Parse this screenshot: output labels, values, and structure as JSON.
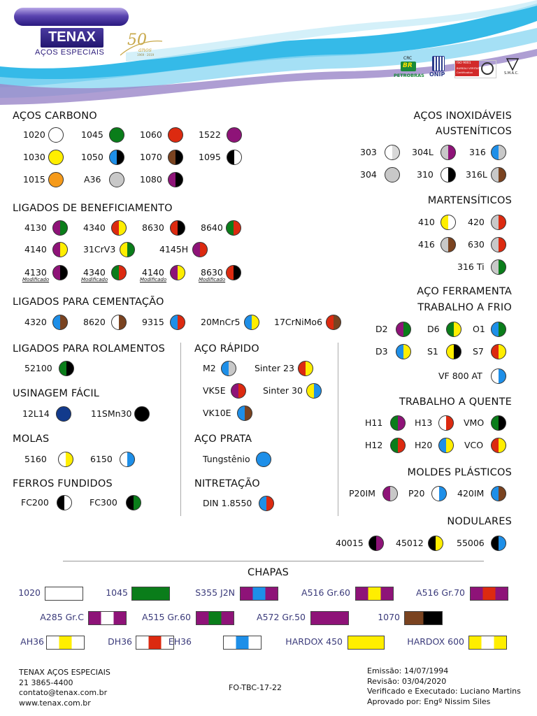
{
  "header": {
    "brand": "TENAX",
    "subtitle": "AÇOS ESPECIAIS",
    "anniv_num": "50",
    "anniv_word": "anos",
    "anniv_years": "1969 · 2019",
    "cert_logos": [
      {
        "name": "petrobras-crc-logo",
        "top": "CRC",
        "mid": "BR",
        "bottom": "PETROBRAS"
      },
      {
        "name": "onip-logo",
        "bottom": "ONIP"
      },
      {
        "name": "iso-9001-logo",
        "top": "ISO 9001",
        "mid": "BUREAU VERITAS",
        "bottom": "Certification"
      },
      {
        "name": "smac-logo",
        "bottom": "S.M.A.C."
      }
    ]
  },
  "colors": {
    "white": "#ffffff",
    "green": "#0a7d1a",
    "red": "#dc2a10",
    "purple": "#8e1378",
    "yellow": "#ffee00",
    "blue": "#1e8fe8",
    "black": "#000000",
    "brown": "#7a4320",
    "orange": "#f59a1a",
    "gray": "#c8c8c8",
    "navy": "#123a8c",
    "lightgray": "#d8d8d8",
    "lightblue": "#55aaee"
  },
  "sections": {
    "carbono": {
      "title": "AÇOS CARBONO",
      "items": [
        {
          "label": "1020",
          "left": "white",
          "right": "white"
        },
        {
          "label": "1045",
          "left": "green",
          "right": "green"
        },
        {
          "label": "1060",
          "left": "red",
          "right": "red"
        },
        {
          "label": "1522",
          "left": "purple",
          "right": "purple"
        },
        {
          "label": "1030",
          "left": "yellow",
          "right": "yellow"
        },
        {
          "label": "1050",
          "left": "blue",
          "right": "black"
        },
        {
          "label": "1070",
          "left": "brown",
          "right": "black"
        },
        {
          "label": "1095",
          "left": "black",
          "right": "white"
        },
        {
          "label": "1015",
          "left": "orange",
          "right": "orange"
        },
        {
          "label": "A36",
          "left": "gray",
          "right": "gray"
        },
        {
          "label": "1080",
          "left": "purple",
          "right": "black"
        }
      ]
    },
    "beneficiamento": {
      "title": "LIGADOS DE BENEFICIAMENTO",
      "items": [
        {
          "label": "4130",
          "left": "purple",
          "right": "green"
        },
        {
          "label": "4340",
          "left": "red",
          "right": "yellow"
        },
        {
          "label": "8630",
          "left": "red",
          "right": "black"
        },
        {
          "label": "8640",
          "left": "green",
          "right": "red"
        },
        {
          "label": "4140",
          "left": "purple",
          "right": "yellow"
        },
        {
          "label": "31CrV3",
          "left": "yellow",
          "right": "green"
        },
        {
          "label": "4145H",
          "left": "purple",
          "right": "red"
        },
        {
          "label": "4130",
          "left": "purple",
          "right": "black",
          "mod": "Modificado"
        },
        {
          "label": "4340",
          "left": "green",
          "right": "red",
          "mod": "Modificado"
        },
        {
          "label": "4140",
          "left": "purple",
          "right": "yellow",
          "mod": "Modificado"
        },
        {
          "label": "8630",
          "left": "red",
          "right": "black",
          "mod": "Modificado"
        }
      ]
    },
    "cementacao": {
      "title": "LIGADOS PARA CEMENTAÇÃO",
      "items": [
        {
          "label": "4320",
          "left": "blue",
          "right": "brown"
        },
        {
          "label": "8620",
          "left": "white",
          "right": "brown"
        },
        {
          "label": "9315",
          "left": "blue",
          "right": "red"
        },
        {
          "label": "20MnCr5",
          "left": "blue",
          "right": "yellow"
        },
        {
          "label": "17CrNiMo6",
          "left": "red",
          "right": "brown"
        }
      ]
    },
    "rolamentos": {
      "title": "LIGADOS PARA ROLAMENTOS",
      "items": [
        {
          "label": "52100",
          "left": "green",
          "right": "black"
        }
      ]
    },
    "usinagem": {
      "title": "USINAGEM FÁCIL",
      "items": [
        {
          "label": "12L14",
          "left": "navy",
          "right": "navy"
        },
        {
          "label": "11SMn30",
          "left": "black",
          "right": "black"
        }
      ]
    },
    "molas": {
      "title": "MOLAS",
      "items": [
        {
          "label": "5160",
          "left": "white",
          "right": "yellow"
        },
        {
          "label": "6150",
          "left": "white",
          "right": "blue"
        }
      ]
    },
    "ferros": {
      "title": "FERROS FUNDIDOS",
      "items": [
        {
          "label": "FC200",
          "left": "black",
          "right": "white"
        },
        {
          "label": "FC300",
          "left": "black",
          "right": "green"
        }
      ]
    },
    "rapido": {
      "title": "AÇO RÁPIDO",
      "items": [
        {
          "label": "M2",
          "left": "blue",
          "right": "gray"
        },
        {
          "label": "Sinter 23",
          "left": "red",
          "right": "yellow"
        },
        {
          "label": "VK5E",
          "left": "purple",
          "right": "red"
        },
        {
          "label": "Sinter 30",
          "left": "yellow",
          "right": "blue"
        },
        {
          "label": "VK10E",
          "left": "blue",
          "right": "brown"
        }
      ]
    },
    "prata": {
      "title": "AÇO PRATA",
      "items": [
        {
          "label": "Tungstênio",
          "left": "blue",
          "right": "blue"
        }
      ]
    },
    "nitretacao": {
      "title": "NITRETAÇÃO",
      "items": [
        {
          "label": "DIN 1.8550",
          "left": "blue",
          "right": "red"
        }
      ]
    },
    "inox": {
      "title1": "AÇOS INOXIDÁVEIS",
      "title2": "AUSTENÍTICOS",
      "items": [
        {
          "label": "303",
          "left": "white",
          "right": "lightgray"
        },
        {
          "label": "304L",
          "left": "gray",
          "right": "purple"
        },
        {
          "label": "316",
          "left": "blue",
          "right": "gray"
        },
        {
          "label": "304",
          "left": "gray",
          "right": "gray"
        },
        {
          "label": "310",
          "left": "white",
          "right": "black"
        },
        {
          "label": "316L",
          "left": "gray",
          "right": "brown"
        }
      ]
    },
    "martensiticos": {
      "title": "MARTENSÍTICOS",
      "items": [
        {
          "label": "410",
          "left": "yellow",
          "right": "white"
        },
        {
          "label": "420",
          "left": "gray",
          "right": "red"
        },
        {
          "label": "416",
          "left": "gray",
          "right": "brown"
        },
        {
          "label": "630",
          "left": "gray",
          "right": "red"
        },
        {
          "label": "316 Ti",
          "left": "gray",
          "right": "green"
        }
      ]
    },
    "frio": {
      "title1": "AÇO FERRAMENTA",
      "title2": "TRABALHO A FRIO",
      "items": [
        {
          "label": "D2",
          "left": "purple",
          "right": "green"
        },
        {
          "label": "D6",
          "left": "green",
          "right": "yellow"
        },
        {
          "label": "O1",
          "left": "blue",
          "right": "green"
        },
        {
          "label": "D3",
          "left": "blue",
          "right": "yellow"
        },
        {
          "label": "S1",
          "left": "yellow",
          "right": "black"
        },
        {
          "label": "S7",
          "left": "red",
          "right": "yellow"
        },
        {
          "label": "VF 800 AT",
          "left": "white",
          "right": "blue"
        }
      ]
    },
    "quente": {
      "title": "TRABALHO A QUENTE",
      "items": [
        {
          "label": "H11",
          "left": "green",
          "right": "purple"
        },
        {
          "label": "H13",
          "left": "white",
          "right": "red"
        },
        {
          "label": "VMO",
          "left": "green",
          "right": "black"
        },
        {
          "label": "H12",
          "left": "green",
          "right": "red"
        },
        {
          "label": "H20",
          "left": "blue",
          "right": "yellow"
        },
        {
          "label": "VCO",
          "left": "red",
          "right": "yellow"
        }
      ]
    },
    "plasticos": {
      "title": "MOLDES PLÁSTICOS",
      "items": [
        {
          "label": "P20IM",
          "left": "purple",
          "right": "gray"
        },
        {
          "label": "P20",
          "left": "white",
          "right": "blue"
        },
        {
          "label": "420IM",
          "left": "blue",
          "right": "brown"
        }
      ]
    },
    "nodulares": {
      "title": "NODULARES",
      "items": [
        {
          "label": "40015",
          "left": "black",
          "right": "purple"
        },
        {
          "label": "45012",
          "left": "black",
          "right": "yellow"
        },
        {
          "label": "55006",
          "left": "black",
          "right": "blue"
        }
      ]
    }
  },
  "chapas": {
    "title": "CHAPAS",
    "items": [
      {
        "label": "1020",
        "stripes": [
          "white"
        ]
      },
      {
        "label": "1045",
        "stripes": [
          "green"
        ]
      },
      {
        "label": "S355 J2N",
        "stripes": [
          "purple",
          "blue",
          "purple"
        ]
      },
      {
        "label": "A516 Gr.60",
        "stripes": [
          "purple",
          "yellow",
          "purple"
        ]
      },
      {
        "label": "A516 Gr.70",
        "stripes": [
          "purple",
          "red",
          "purple"
        ]
      },
      {
        "label": "A285 Gr.C",
        "stripes": [
          "purple",
          "white",
          "purple"
        ]
      },
      {
        "label": "A515 Gr.60",
        "stripes": [
          "purple",
          "green",
          "purple"
        ]
      },
      {
        "label": "A572 Gr.50",
        "stripes": [
          "purple"
        ]
      },
      {
        "label": "1070",
        "stripes": [
          "brown",
          "black"
        ]
      },
      {
        "label": "AH36",
        "stripes": [
          "white",
          "yellow",
          "white"
        ]
      },
      {
        "label": "DH36",
        "stripes": [
          "white",
          "red",
          "white"
        ]
      },
      {
        "label": "EH36",
        "stripes": [
          "white",
          "blue",
          "white"
        ]
      },
      {
        "label": "HARDOX 450",
        "stripes": [
          "yellow"
        ]
      },
      {
        "label": "HARDOX 600",
        "stripes": [
          "yellow",
          "white",
          "yellow"
        ]
      }
    ]
  },
  "footer": {
    "company": "TENAX AÇOS ESPECIAIS",
    "phone": "21 3865-4400",
    "email": "contato@tenax.com.br",
    "site": "www.tenax.com.br",
    "code": "FO-TBC-17-22",
    "emissao": "Emissão: 14/07/1994",
    "revisao": "Revisão: 03/04/2020",
    "verificado": "Verificado e Executado: Luciano Martins",
    "aprovado": "Aprovado por: Engº Nissim Siles"
  }
}
